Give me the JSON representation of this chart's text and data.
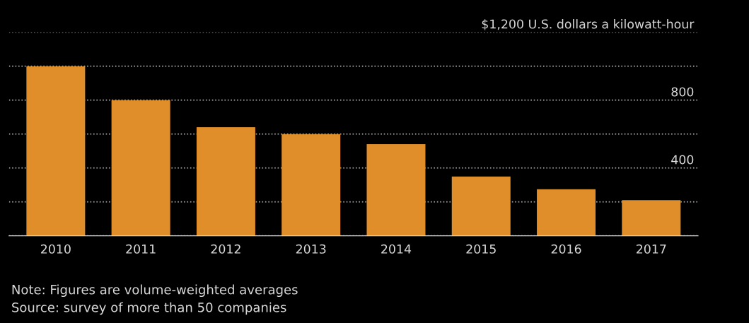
{
  "chart_data": {
    "type": "bar",
    "categories": [
      "2010",
      "2011",
      "2012",
      "2013",
      "2014",
      "2015",
      "2016",
      "2017"
    ],
    "values": [
      1000,
      800,
      640,
      600,
      540,
      350,
      275,
      210
    ],
    "color": "#e08e2a",
    "ylim": [
      0,
      1200
    ],
    "yticks": [
      {
        "value": 0,
        "label": null
      },
      {
        "value": 200,
        "label": null
      },
      400,
      {
        "value": 600,
        "label": null
      },
      800,
      {
        "value": 1000,
        "label": null
      },
      {
        "value": 1200,
        "label": "$1,200 U.S. dollars a kilowatt-hour"
      }
    ],
    "grid": "y",
    "annotations": [
      "Note: Figures are volume-weighted averages",
      "Source: survey of more than 50 companies"
    ]
  }
}
